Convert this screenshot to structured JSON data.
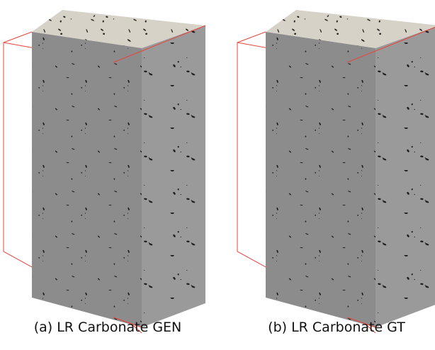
{
  "figures": [
    {
      "caption": "(a) LR Carbonate GEN"
    },
    {
      "caption": "(b) LR Carbonate GT"
    }
  ]
}
